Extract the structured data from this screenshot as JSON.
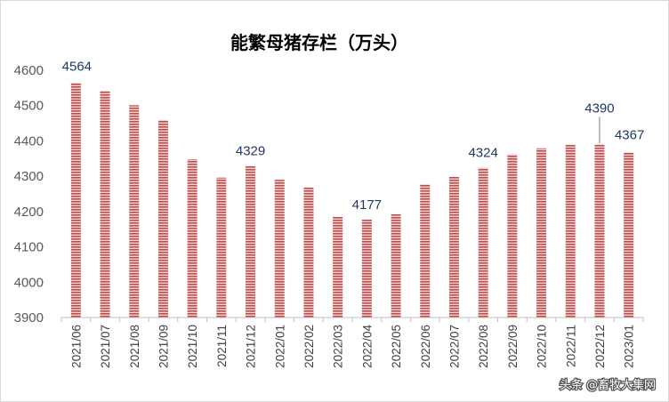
{
  "chart_data": {
    "type": "bar",
    "title": "能繁母猪存栏（万头）",
    "xlabel": "",
    "ylabel": "",
    "categories": [
      "2021/06",
      "2021/07",
      "2021/08",
      "2021/09",
      "2021/10",
      "2021/11",
      "2021/12",
      "2022/01",
      "2022/02",
      "2022/03",
      "2022/04",
      "2022/05",
      "2022/06",
      "2022/07",
      "2022/08",
      "2022/09",
      "2022/10",
      "2022/11",
      "2022/12",
      "2023/01"
    ],
    "values": [
      4564,
      4542,
      4501,
      4459,
      4348,
      4296,
      4329,
      4290,
      4268,
      4185,
      4177,
      4192,
      4277,
      4298,
      4324,
      4362,
      4379,
      4389,
      4390,
      4367
    ],
    "ylim": [
      3900,
      4600
    ],
    "yticks": [
      3900,
      4000,
      4100,
      4200,
      4300,
      4400,
      4500,
      4600
    ],
    "data_labels": [
      {
        "index": 0,
        "text": "4564"
      },
      {
        "index": 6,
        "text": "4329"
      },
      {
        "index": 10,
        "text": "4177"
      },
      {
        "index": 14,
        "text": "4324"
      },
      {
        "index": 18,
        "text": "4390"
      },
      {
        "index": 19,
        "text": "4367"
      }
    ],
    "bar_color": "#c0504d",
    "stripe_color": "#f2d3d1",
    "grid": false,
    "legend": "none"
  },
  "watermark": "头条 @畜牧大集网"
}
